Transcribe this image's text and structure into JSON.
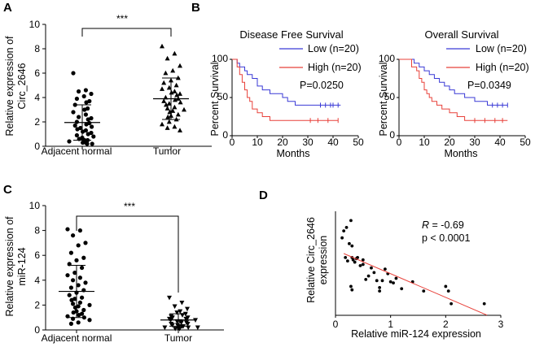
{
  "colors": {
    "low": "#3a3ad6",
    "high": "#e8413a",
    "fit": "#e8413a",
    "ink": "#000000"
  },
  "panels": {
    "A": {
      "letter": "A"
    },
    "B": {
      "letter": "B"
    },
    "C": {
      "letter": "C"
    },
    "D": {
      "letter": "D"
    }
  },
  "chart_data": [
    {
      "id": "A",
      "type": "scatter",
      "ylabel_line1": "Relative expression of",
      "ylabel_line2": "Circ_2646",
      "ylim": [
        0,
        10
      ],
      "yticks": [
        "0",
        "2",
        "4",
        "6",
        "8",
        "10"
      ],
      "categories": [
        "Adjacent normal",
        "Tumor"
      ],
      "significance": "***",
      "groups": [
        {
          "name": "Adjacent normal",
          "marker": "circle",
          "mean": 1.95,
          "sd": 1.45,
          "values": [
            6.0,
            4.6,
            4.5,
            4.3,
            4.1,
            3.9,
            3.7,
            3.6,
            3.4,
            3.1,
            3.0,
            2.8,
            2.6,
            2.4,
            2.3,
            2.2,
            2.0,
            1.9,
            1.8,
            1.7,
            1.6,
            1.5,
            1.4,
            1.3,
            1.2,
            1.1,
            1.0,
            0.9,
            0.8,
            0.7,
            0.6,
            0.5,
            0.5,
            0.4,
            0.3,
            0.3,
            0.2,
            0.2
          ]
        },
        {
          "name": "Tumor",
          "marker": "triangle",
          "mean": 3.9,
          "sd": 1.7,
          "values": [
            8.2,
            7.6,
            7.2,
            6.6,
            6.2,
            6.0,
            5.6,
            5.4,
            5.2,
            5.0,
            4.8,
            4.7,
            4.5,
            4.4,
            4.3,
            4.2,
            4.0,
            3.9,
            3.8,
            3.7,
            3.6,
            3.5,
            3.4,
            3.2,
            3.1,
            3.0,
            2.9,
            2.8,
            2.6,
            2.5,
            2.4,
            2.2,
            2.0,
            1.8,
            1.6,
            1.5,
            1.3
          ]
        }
      ]
    },
    {
      "id": "B1",
      "type": "line",
      "title": "Disease Free Survival",
      "ylabel": "Percent Survival",
      "xlabel": "Months",
      "xlim": [
        0,
        50
      ],
      "ylim": [
        0,
        100
      ],
      "xticks": [
        "0",
        "10",
        "20",
        "30",
        "40",
        "50"
      ],
      "yticks": [
        "0",
        "50",
        "100"
      ],
      "pvalue": "P=0.0250",
      "series": [
        {
          "name": "Low (n=20)",
          "color": "#3a3ad6",
          "x": [
            0,
            2,
            3,
            5,
            6,
            8,
            10,
            12,
            15,
            20,
            22,
            25,
            43
          ],
          "y": [
            100,
            95,
            90,
            85,
            80,
            75,
            65,
            60,
            55,
            50,
            45,
            40,
            40
          ],
          "censor_x": [
            35,
            37,
            39,
            40,
            42
          ]
        },
        {
          "name": "High (n=20)",
          "color": "#e8413a",
          "x": [
            0,
            2,
            3,
            4,
            5,
            6,
            7,
            8,
            10,
            12,
            15,
            42
          ],
          "y": [
            100,
            90,
            80,
            70,
            60,
            50,
            45,
            35,
            30,
            25,
            20,
            20
          ],
          "censor_x": [
            31,
            34,
            38,
            42
          ]
        }
      ]
    },
    {
      "id": "B2",
      "type": "line",
      "title": "Overall Survival",
      "ylabel": "Percent Survival",
      "xlabel": "Months",
      "xlim": [
        0,
        50
      ],
      "ylim": [
        0,
        100
      ],
      "xticks": [
        "0",
        "10",
        "20",
        "30",
        "40",
        "50"
      ],
      "yticks": [
        "0",
        "50",
        "100"
      ],
      "pvalue": "P=0.0349",
      "series": [
        {
          "name": "Low (n=20)",
          "color": "#3a3ad6",
          "x": [
            0,
            6,
            8,
            10,
            12,
            14,
            16,
            18,
            20,
            22,
            26,
            30,
            35,
            43
          ],
          "y": [
            100,
            95,
            90,
            85,
            80,
            75,
            70,
            65,
            60,
            55,
            50,
            45,
            40,
            40
          ],
          "censor_x": [
            37,
            39,
            41,
            43
          ]
        },
        {
          "name": "High (n=20)",
          "color": "#e8413a",
          "x": [
            0,
            5,
            7,
            8,
            9,
            10,
            11,
            12,
            13,
            15,
            17,
            20,
            23,
            26,
            43
          ],
          "y": [
            100,
            90,
            85,
            75,
            70,
            60,
            55,
            50,
            45,
            40,
            35,
            30,
            25,
            20,
            20
          ],
          "censor_x": [
            30,
            34,
            38,
            41
          ]
        }
      ]
    },
    {
      "id": "C",
      "type": "scatter",
      "ylabel_line1": "Relative expression of",
      "ylabel_line2": "miR-124",
      "ylim": [
        0,
        10
      ],
      "yticks": [
        "0",
        "2",
        "4",
        "6",
        "8",
        "10"
      ],
      "categories": [
        "Adjacent normal",
        "Tumor"
      ],
      "significance": "***",
      "groups": [
        {
          "name": "Adjacent normal",
          "marker": "circle",
          "mean": 3.1,
          "sd": 2.1,
          "values": [
            8.1,
            8.0,
            7.6,
            7.0,
            6.8,
            6.2,
            5.8,
            5.6,
            5.3,
            5.0,
            4.6,
            4.4,
            4.2,
            4.0,
            3.8,
            3.6,
            3.4,
            3.2,
            3.0,
            2.8,
            2.6,
            2.5,
            2.4,
            2.2,
            2.1,
            2.0,
            1.9,
            1.8,
            1.6,
            1.5,
            1.4,
            1.3,
            1.2,
            1.1,
            1.0,
            0.9,
            0.8,
            0.6,
            0.5
          ]
        },
        {
          "name": "Tumor",
          "marker": "triangle-down",
          "mean": 0.8,
          "sd": 0.5,
          "values": [
            2.6,
            2.2,
            1.9,
            1.7,
            1.5,
            1.4,
            1.3,
            1.2,
            1.1,
            1.0,
            1.0,
            0.9,
            0.9,
            0.8,
            0.8,
            0.7,
            0.7,
            0.6,
            0.6,
            0.5,
            0.5,
            0.4,
            0.4,
            0.3,
            0.3,
            0.3,
            0.2,
            0.2,
            0.2,
            0.1,
            0.1,
            0.1
          ]
        }
      ]
    },
    {
      "id": "D",
      "type": "scatter",
      "xlabel": "Relative miR-124 expression",
      "ylabel_line1": "Relative Circ_2646",
      "ylabel_line2": "expression",
      "xlim": [
        0,
        3
      ],
      "ylim": [
        0,
        9
      ],
      "xticks": [
        "0",
        "1",
        "2",
        "3"
      ],
      "r_symbol": "R",
      "r_value": " = -0.69",
      "pvalue": "p < 0.0001",
      "fit": {
        "slope": -2.05,
        "intercept": 5.65
      },
      "x": [
        0.12,
        0.15,
        0.18,
        0.2,
        0.22,
        0.25,
        0.28,
        0.3,
        0.3,
        0.32,
        0.35,
        0.38,
        0.4,
        0.45,
        0.5,
        0.55,
        0.6,
        0.65,
        0.7,
        0.75,
        0.8,
        0.85,
        0.9,
        0.95,
        1.0,
        1.05,
        1.1,
        1.2,
        1.4,
        1.6,
        2.0,
        2.05,
        2.1,
        2.7,
        0.28,
        0.3,
        0.5,
        0.8
      ],
      "y": [
        6.7,
        7.3,
        5.0,
        7.6,
        4.7,
        6.2,
        8.2,
        6.0,
        5.0,
        4.8,
        4.6,
        4.9,
        5.0,
        4.3,
        4.8,
        3.1,
        3.4,
        4.1,
        3.7,
        3.0,
        2.1,
        3.0,
        4.0,
        3.6,
        2.9,
        2.8,
        3.2,
        2.3,
        2.9,
        2.1,
        2.5,
        2.1,
        1.0,
        1.0,
        2.5,
        2.2,
        4.4,
        2.4
      ]
    }
  ]
}
